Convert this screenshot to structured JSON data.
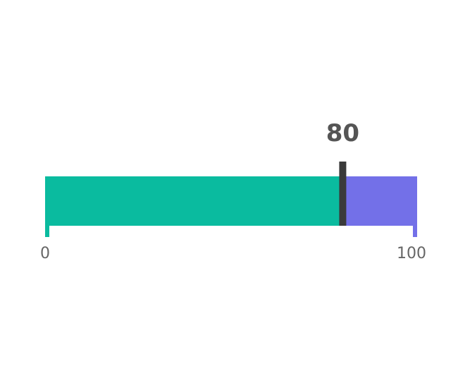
{
  "chart_data": {
    "type": "bullet-gauge",
    "min": 0,
    "max": 100,
    "value": 80,
    "value_label": "80",
    "min_label": "0",
    "max_label": "100",
    "colors": {
      "filled": "#0abb9f",
      "remaining": "#7370e8",
      "marker": "#3a3a3a",
      "value_text": "#555555",
      "tick_text": "#666666"
    }
  }
}
